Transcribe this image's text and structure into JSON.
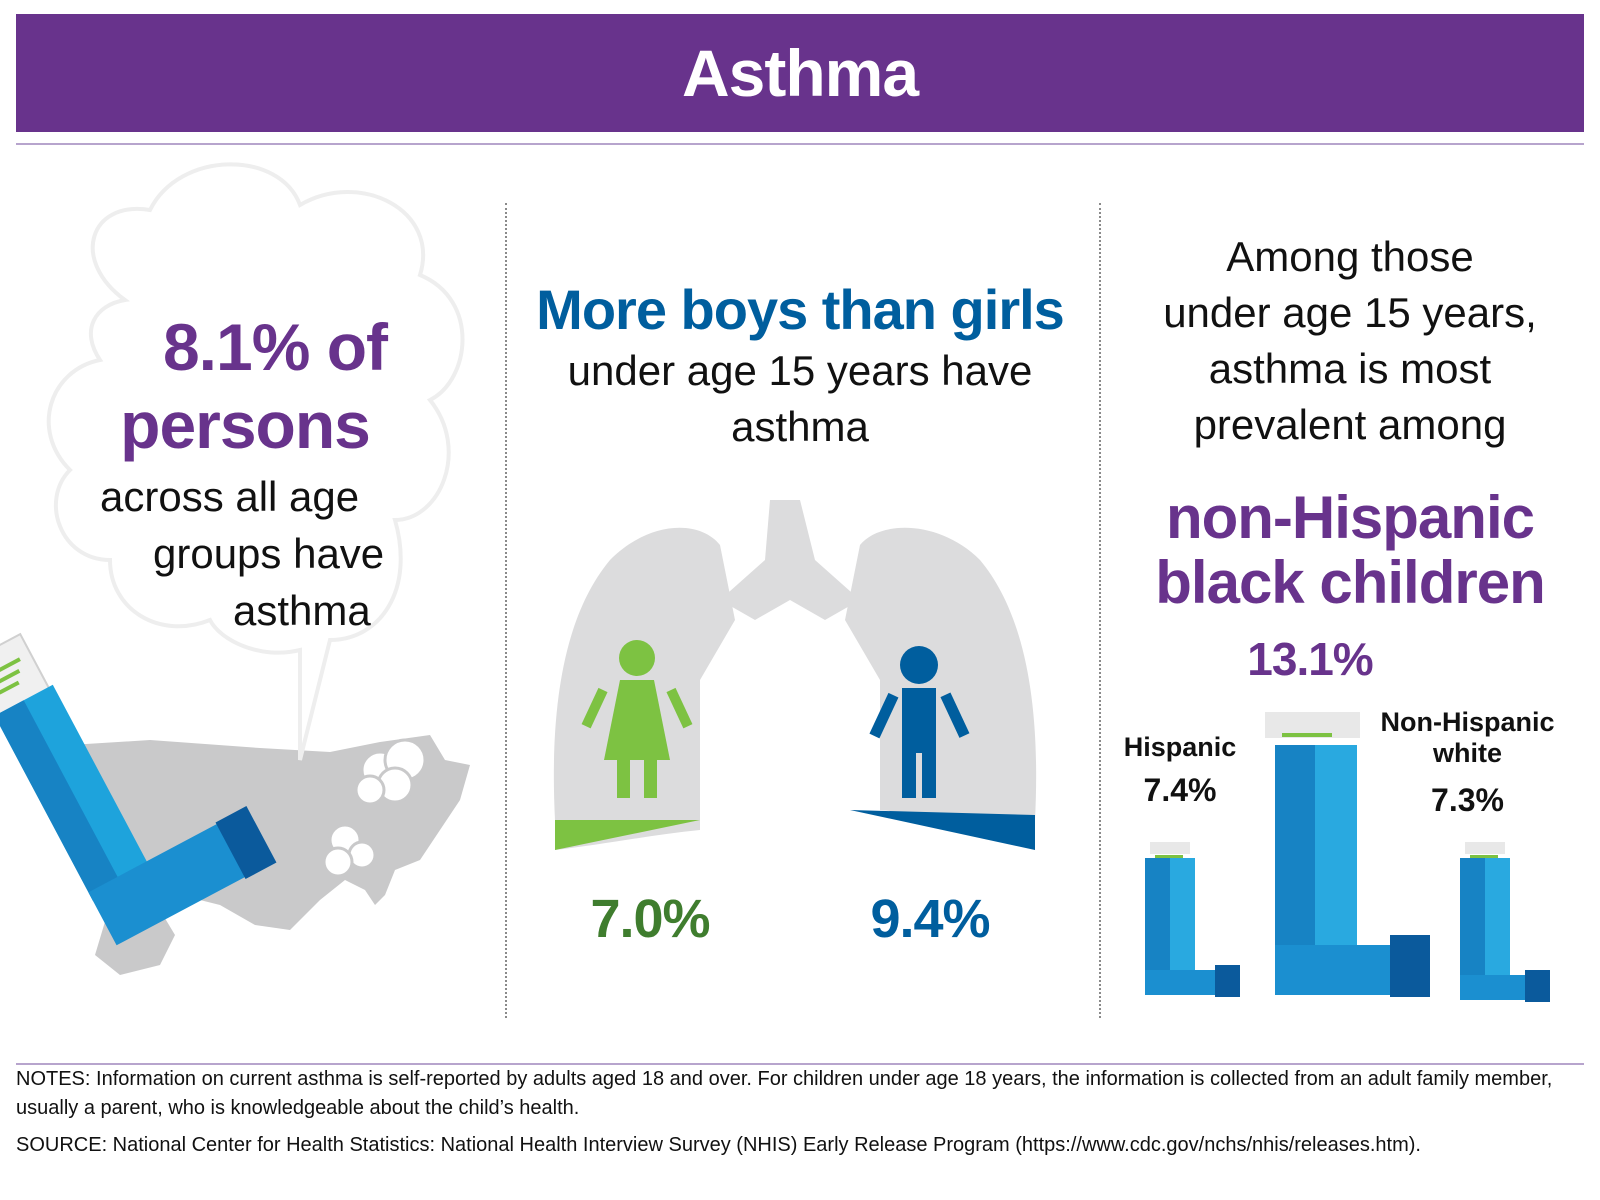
{
  "header": {
    "title": "Asthma"
  },
  "panel_all_ages": {
    "headline_line1": "8.1% of",
    "headline_line2": "persons",
    "text_line1": "across all age",
    "text_line2": "groups have",
    "text_line3": "asthma"
  },
  "panel_sex": {
    "headline": "More boys than girls",
    "text_line1": "under age 15 years have",
    "text_line2": "asthma",
    "girls_percent": "7.0%",
    "boys_percent": "9.4%",
    "girls_value": 7.0,
    "boys_value": 9.4
  },
  "panel_race": {
    "text_line1": "Among those",
    "text_line2": "under age 15 years,",
    "text_line3": "asthma is most",
    "text_line4": "prevalent among",
    "highlight_line1": "non-Hispanic",
    "highlight_line2": "black children",
    "black_percent": "13.1%",
    "hispanic_label": "Hispanic",
    "hispanic_percent": "7.4%",
    "white_label_line1": "Non-Hispanic",
    "white_label_line2": "white",
    "white_percent": "7.3%"
  },
  "footer": {
    "notes": "NOTES: Information on current asthma is self-reported by adults aged 18 and over. For children under age 18 years, the information is collected from an adult family member, usually a parent, who is knowledgeable about the child’s health.",
    "source": "SOURCE: National Center for Health Statistics: National Health Interview Survey (NHIS) Early Release Program (https://www.cdc.gov/nchs/nhis/releases.htm)."
  },
  "colors": {
    "purple": "#68338c",
    "blue": "#005e9e",
    "green": "#7dc242",
    "dark_green": "#3f7d2e",
    "lung_gray": "#dcdcdd",
    "inhaler_light": "#29a9e0",
    "inhaler_dark": "#0b5a9c"
  }
}
